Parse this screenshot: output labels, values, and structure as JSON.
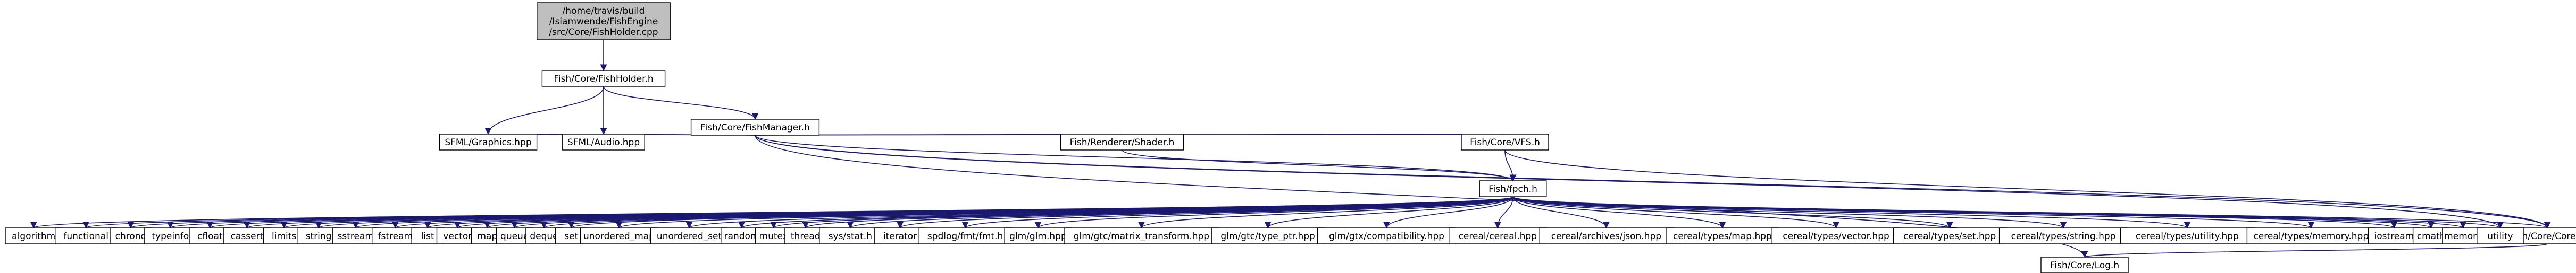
{
  "colors": {
    "edge": "#191970",
    "root_fill": "#bfbfbf",
    "node_border": "#000000",
    "external_border": "#bfbfbf",
    "unresolved_border": "#ff0000"
  },
  "diagram": {
    "type": "include-dependency-graph",
    "nodes": [
      {
        "id": "root",
        "label": "/home/travis/build\n/Isiamwende/FishEngine\n/src/Core/FishHolder.cpp",
        "kind": "root"
      },
      {
        "id": "fishholder_h",
        "label": "Fish/Core/FishHolder.h",
        "kind": "normal"
      },
      {
        "id": "fishmanager_h",
        "label": "Fish/Core/FishManager.h",
        "kind": "normal"
      },
      {
        "id": "sfml_graphics",
        "label": "SFML/Graphics.hpp",
        "kind": "external"
      },
      {
        "id": "sfml_audio",
        "label": "SFML/Audio.hpp",
        "kind": "external"
      },
      {
        "id": "shader_h",
        "label": "Fish/Renderer/Shader.h",
        "kind": "unresolved"
      },
      {
        "id": "vfs_h",
        "label": "Fish/Core/VFS.h",
        "kind": "normal"
      },
      {
        "id": "fishpch_h",
        "label": "Fish/fpch.h",
        "kind": "unresolved"
      },
      {
        "id": "core_h",
        "label": "Fish/Core/Core.h",
        "kind": "unresolved"
      },
      {
        "id": "log_h",
        "label": "Fish/Core/Log.h",
        "kind": "unresolved"
      },
      {
        "id": "algorithm",
        "label": "algorithm",
        "kind": "external"
      },
      {
        "id": "functional",
        "label": "functional",
        "kind": "external"
      },
      {
        "id": "chrono",
        "label": "chrono",
        "kind": "external"
      },
      {
        "id": "typeinfo",
        "label": "typeinfo",
        "kind": "external"
      },
      {
        "id": "cfloat",
        "label": "cfloat",
        "kind": "external"
      },
      {
        "id": "cassert",
        "label": "cassert",
        "kind": "external"
      },
      {
        "id": "limits",
        "label": "limits",
        "kind": "external"
      },
      {
        "id": "string",
        "label": "string",
        "kind": "external"
      },
      {
        "id": "sstream",
        "label": "sstream",
        "kind": "external"
      },
      {
        "id": "fstream",
        "label": "fstream",
        "kind": "external"
      },
      {
        "id": "list",
        "label": "list",
        "kind": "external"
      },
      {
        "id": "vector",
        "label": "vector",
        "kind": "external"
      },
      {
        "id": "map",
        "label": "map",
        "kind": "external"
      },
      {
        "id": "queue",
        "label": "queue",
        "kind": "external"
      },
      {
        "id": "deque",
        "label": "deque",
        "kind": "external"
      },
      {
        "id": "set",
        "label": "set",
        "kind": "external"
      },
      {
        "id": "unordered_map",
        "label": "unordered_map",
        "kind": "external"
      },
      {
        "id": "unordered_set",
        "label": "unordered_set",
        "kind": "external"
      },
      {
        "id": "random",
        "label": "random",
        "kind": "external"
      },
      {
        "id": "mutex",
        "label": "mutex",
        "kind": "external"
      },
      {
        "id": "thread",
        "label": "thread",
        "kind": "external"
      },
      {
        "id": "sys_stat",
        "label": "sys/stat.h",
        "kind": "external"
      },
      {
        "id": "iterator",
        "label": "iterator",
        "kind": "external"
      },
      {
        "id": "spdlog",
        "label": "spdlog/fmt/fmt.h",
        "kind": "external"
      },
      {
        "id": "glm",
        "label": "glm/glm.hpp",
        "kind": "external"
      },
      {
        "id": "glm_mt",
        "label": "glm/gtc/matrix_transform.hpp",
        "kind": "external"
      },
      {
        "id": "glm_tp",
        "label": "glm/gtc/type_ptr.hpp",
        "kind": "external"
      },
      {
        "id": "glm_comp",
        "label": "glm/gtx/compatibility.hpp",
        "kind": "external"
      },
      {
        "id": "cereal",
        "label": "cereal/cereal.hpp",
        "kind": "external"
      },
      {
        "id": "cereal_json",
        "label": "cereal/archives/json.hpp",
        "kind": "external"
      },
      {
        "id": "cereal_map",
        "label": "cereal/types/map.hpp",
        "kind": "external"
      },
      {
        "id": "cereal_vector",
        "label": "cereal/types/vector.hpp",
        "kind": "external"
      },
      {
        "id": "cereal_set",
        "label": "cereal/types/set.hpp",
        "kind": "external"
      },
      {
        "id": "cereal_string",
        "label": "cereal/types/string.hpp",
        "kind": "external"
      },
      {
        "id": "cereal_utility",
        "label": "cereal/types/utility.hpp",
        "kind": "external"
      },
      {
        "id": "cereal_memory",
        "label": "cereal/types/memory.hpp",
        "kind": "external"
      },
      {
        "id": "iostream",
        "label": "iostream",
        "kind": "external"
      },
      {
        "id": "cmath",
        "label": "cmath",
        "kind": "external"
      },
      {
        "id": "memory",
        "label": "memory",
        "kind": "external"
      },
      {
        "id": "utility",
        "label": "utility",
        "kind": "external"
      }
    ],
    "edges": [
      [
        "root",
        "fishholder_h"
      ],
      [
        "fishholder_h",
        "fishmanager_h"
      ],
      [
        "fishholder_h",
        "sfml_graphics"
      ],
      [
        "fishholder_h",
        "sfml_audio"
      ],
      [
        "fishmanager_h",
        "sfml_graphics"
      ],
      [
        "fishmanager_h",
        "sfml_audio"
      ],
      [
        "fishmanager_h",
        "shader_h"
      ],
      [
        "fishmanager_h",
        "vfs_h"
      ],
      [
        "fishmanager_h",
        "fishpch_h"
      ],
      [
        "fishmanager_h",
        "core_h"
      ],
      [
        "fishmanager_h",
        "log_h"
      ],
      [
        "fishmanager_h",
        "utility"
      ],
      [
        "shader_h",
        "fishpch_h"
      ],
      [
        "vfs_h",
        "fishpch_h"
      ],
      [
        "vfs_h",
        "core_h"
      ],
      [
        "core_h",
        "log_h"
      ],
      [
        "fishpch_h",
        "algorithm"
      ],
      [
        "fishpch_h",
        "functional"
      ],
      [
        "fishpch_h",
        "chrono"
      ],
      [
        "fishpch_h",
        "typeinfo"
      ],
      [
        "fishpch_h",
        "cfloat"
      ],
      [
        "fishpch_h",
        "cassert"
      ],
      [
        "fishpch_h",
        "limits"
      ],
      [
        "fishpch_h",
        "string"
      ],
      [
        "fishpch_h",
        "sstream"
      ],
      [
        "fishpch_h",
        "fstream"
      ],
      [
        "fishpch_h",
        "list"
      ],
      [
        "fishpch_h",
        "vector"
      ],
      [
        "fishpch_h",
        "map"
      ],
      [
        "fishpch_h",
        "queue"
      ],
      [
        "fishpch_h",
        "deque"
      ],
      [
        "fishpch_h",
        "set"
      ],
      [
        "fishpch_h",
        "unordered_map"
      ],
      [
        "fishpch_h",
        "unordered_set"
      ],
      [
        "fishpch_h",
        "random"
      ],
      [
        "fishpch_h",
        "mutex"
      ],
      [
        "fishpch_h",
        "thread"
      ],
      [
        "fishpch_h",
        "sys_stat"
      ],
      [
        "fishpch_h",
        "iterator"
      ],
      [
        "fishpch_h",
        "spdlog"
      ],
      [
        "fishpch_h",
        "glm"
      ],
      [
        "fishpch_h",
        "glm_mt"
      ],
      [
        "fishpch_h",
        "glm_tp"
      ],
      [
        "fishpch_h",
        "glm_comp"
      ],
      [
        "fishpch_h",
        "cereal"
      ],
      [
        "fishpch_h",
        "cereal_json"
      ],
      [
        "fishpch_h",
        "cereal_map"
      ],
      [
        "fishpch_h",
        "cereal_vector"
      ],
      [
        "fishpch_h",
        "cereal_set"
      ],
      [
        "fishpch_h",
        "cereal_string"
      ],
      [
        "fishpch_h",
        "cereal_utility"
      ],
      [
        "fishpch_h",
        "cereal_memory"
      ],
      [
        "fishpch_h",
        "iostream"
      ],
      [
        "fishpch_h",
        "cmath"
      ],
      [
        "fishpch_h",
        "memory"
      ],
      [
        "fishpch_h",
        "utility"
      ],
      [
        "fishpch_h",
        "core_h"
      ]
    ]
  }
}
